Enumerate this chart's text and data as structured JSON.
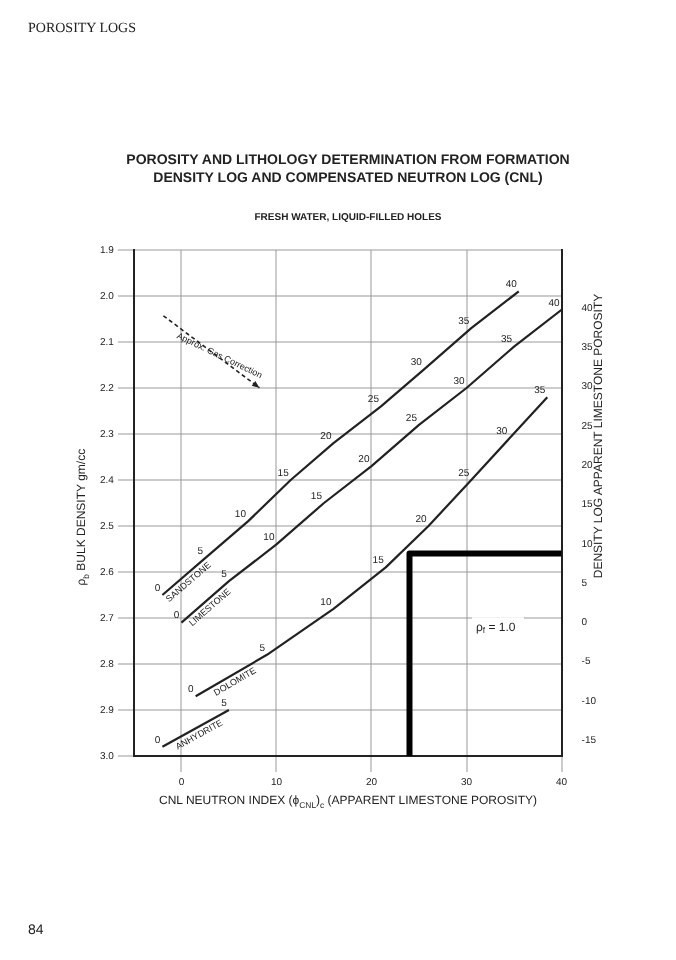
{
  "chart_data": {
    "type": "line",
    "title": "POROSITY AND LITHOLOGY DETERMINATION FROM FORMATION DENSITY LOG AND COMPENSATED NEUTRON LOG (CNL)",
    "subtitle": "FRESH WATER, LIQUID-FILLED HOLES",
    "xlabel": "CNL NEUTRON INDEX (ϕ$_{CNL}$)$_{c}$ (APPARENT LIMESTONE POROSITY)",
    "ylabel": "ρ$_{b}$ BULK DENSITY gm/cc",
    "y2label": "DENSITY LOG APPARENT LIMESTONE POROSITY",
    "xlim": [
      -5,
      40
    ],
    "xticks": [
      0,
      10,
      20,
      30,
      40
    ],
    "ylim": [
      3.0,
      1.9
    ],
    "yticks": [
      1.9,
      {
        "value": 2.0,
        "label": "2.0"
      },
      2.1,
      2.2,
      2.3,
      2.4,
      2.5,
      2.6,
      2.7,
      2.8,
      2.9,
      {
        "value": 3.0,
        "label": "3.0"
      }
    ],
    "y2lim": [
      -17,
      47.4
    ],
    "y2ticks": [
      40,
      35,
      30,
      25,
      20,
      15,
      10,
      5,
      0,
      -5,
      -10,
      -15
    ],
    "grid": true,
    "legend": false,
    "marker": "none",
    "series": [
      {
        "name": "SANDSTONE",
        "color": "#222222",
        "x": [
          -2,
          2.5,
          7,
          11.5,
          16,
          21,
          25.5,
          30.5,
          35.5
        ],
        "values": [
          2.65,
          2.57,
          2.49,
          2.4,
          2.32,
          2.24,
          2.16,
          2.07,
          1.99
        ]
      },
      {
        "name": "LIMESTONE",
        "color": "#222222",
        "x": [
          0,
          5,
          10,
          15,
          20,
          25,
          30,
          35,
          40
        ],
        "values": [
          2.71,
          2.62,
          2.54,
          2.45,
          2.37,
          2.28,
          2.2,
          2.11,
          2.03
        ]
      },
      {
        "name": "DOLOMITE",
        "color": "#222222",
        "x": [
          1.5,
          9,
          16,
          21.5,
          26,
          30.5,
          34.5,
          38.5
        ],
        "values": [
          2.87,
          2.78,
          2.68,
          2.59,
          2.5,
          2.4,
          2.31,
          2.22
        ]
      },
      {
        "name": "ANHYDRITE",
        "color": "#222222",
        "x": [
          -2,
          5
        ],
        "values": [
          2.98,
          2.9
        ]
      },
      {
        "color": "#000000",
        "x": [
          24,
          24,
          40
        ],
        "values": [
          3.0,
          2.56,
          2.56
        ]
      }
    ],
    "annotations": [
      "POROSITY LOGS",
      "84",
      "Approx. Gas Correction",
      "ρ$_{f}$ = 1.0",
      {
        "text": "0",
        "x": -2,
        "y": 2.65
      },
      {
        "text": "5",
        "x": 2.5,
        "y": 2.57
      },
      {
        "text": "10",
        "x": 7,
        "y": 2.49
      },
      {
        "text": "15",
        "x": 11.5,
        "y": 2.4
      },
      {
        "text": "20",
        "x": 16,
        "y": 2.32
      },
      {
        "text": "25",
        "x": 21,
        "y": 2.24
      },
      {
        "text": "30",
        "x": 25.5,
        "y": 2.16
      },
      {
        "text": "35",
        "x": 30.5,
        "y": 2.07
      },
      {
        "text": "40",
        "x": 35.5,
        "y": 1.99
      },
      {
        "text": "0",
        "x": 0,
        "y": 2.71
      },
      {
        "text": "5",
        "x": 5,
        "y": 2.62
      },
      {
        "text": "10",
        "x": 10,
        "y": 2.54
      },
      {
        "text": "15",
        "x": 15,
        "y": 2.45
      },
      {
        "text": "20",
        "x": 20,
        "y": 2.37
      },
      {
        "text": "25",
        "x": 25,
        "y": 2.28
      },
      {
        "text": "30",
        "x": 30,
        "y": 2.2
      },
      {
        "text": "35",
        "x": 35,
        "y": 2.11
      },
      {
        "text": "40",
        "x": 40,
        "y": 2.03
      },
      {
        "text": "0",
        "x": 1.5,
        "y": 2.87
      },
      {
        "text": "5",
        "x": 9,
        "y": 2.78
      },
      {
        "text": "10",
        "x": 16,
        "y": 2.68
      },
      {
        "text": "15",
        "x": 21.5,
        "y": 2.59
      },
      {
        "text": "20",
        "x": 26,
        "y": 2.5
      },
      {
        "text": "25",
        "x": 30.5,
        "y": 2.4
      },
      {
        "text": "30",
        "x": 34.5,
        "y": 2.31
      },
      {
        "text": "35",
        "x": 38.5,
        "y": 2.22
      },
      {
        "text": "0",
        "x": -2,
        "y": 2.98
      },
      {
        "text": "5",
        "x": 5,
        "y": 2.9
      }
    ]
  }
}
